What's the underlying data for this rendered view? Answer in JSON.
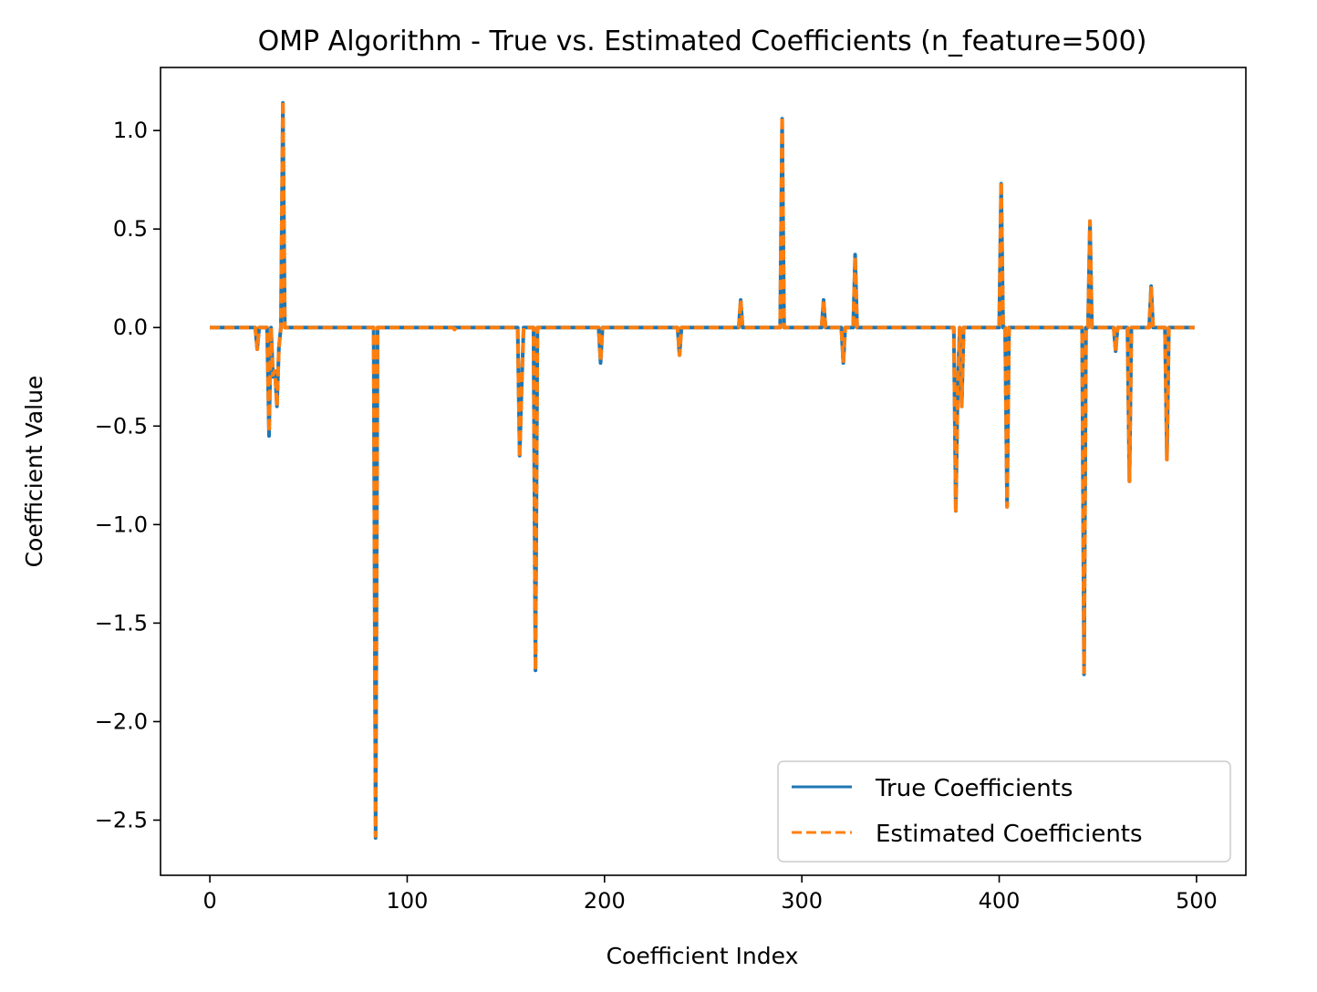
{
  "chart_data": {
    "type": "line",
    "title": "OMP Algorithm - True vs. Estimated Coefficients (n_feature=500)",
    "xlabel": "Coefficient Index",
    "ylabel": "Coefficient Value",
    "xlim": [
      -25,
      525
    ],
    "ylim": [
      -2.78,
      1.32
    ],
    "xticks": [
      0,
      100,
      200,
      300,
      400,
      500
    ],
    "xtick_labels": [
      "0",
      "100",
      "200",
      "300",
      "400",
      "500"
    ],
    "yticks": [
      1.0,
      0.5,
      0.0,
      -0.5,
      -1.0,
      -1.5,
      -2.0,
      -2.5
    ],
    "ytick_labels": [
      "1.0",
      "0.5",
      "0.0",
      "−0.5",
      "−1.0",
      "−1.5",
      "−2.0",
      "−2.5"
    ],
    "grid": false,
    "legend_position": "bottom-right",
    "n_points": 500,
    "series": [
      {
        "name": "True Coefficients",
        "style": "solid",
        "color": "#1f77b4",
        "nonzero": [
          [
            24,
            -0.11
          ],
          [
            30,
            -0.55
          ],
          [
            32,
            -0.25
          ],
          [
            33,
            -0.22
          ],
          [
            34,
            -0.4
          ],
          [
            35,
            -0.1
          ],
          [
            37,
            1.14
          ],
          [
            84,
            -2.59
          ],
          [
            157,
            -0.65
          ],
          [
            158,
            -0.3
          ],
          [
            165,
            -1.74
          ],
          [
            198,
            -0.18
          ],
          [
            238,
            -0.14
          ],
          [
            269,
            0.14
          ],
          [
            290,
            1.06
          ],
          [
            311,
            0.14
          ],
          [
            321,
            -0.18
          ],
          [
            327,
            0.37
          ],
          [
            378,
            -0.93
          ],
          [
            379,
            -0.3
          ],
          [
            381,
            -0.4
          ],
          [
            401,
            0.73
          ],
          [
            404,
            -0.91
          ],
          [
            443,
            -1.76
          ],
          [
            446,
            0.54
          ],
          [
            459,
            -0.12
          ],
          [
            466,
            -0.78
          ],
          [
            477,
            0.21
          ],
          [
            485,
            -0.67
          ]
        ]
      },
      {
        "name": "Estimated Coefficients",
        "style": "dashed",
        "color": "#ff7f0e",
        "nonzero": [
          [
            24,
            -0.11
          ],
          [
            30,
            -0.53
          ],
          [
            32,
            -0.24
          ],
          [
            33,
            -0.22
          ],
          [
            34,
            -0.4
          ],
          [
            35,
            -0.1
          ],
          [
            37,
            1.15
          ],
          [
            84,
            -2.58
          ],
          [
            124,
            -0.01
          ],
          [
            157,
            -0.66
          ],
          [
            158,
            -0.3
          ],
          [
            165,
            -1.74
          ],
          [
            198,
            -0.17
          ],
          [
            238,
            -0.14
          ],
          [
            269,
            0.14
          ],
          [
            290,
            1.07
          ],
          [
            311,
            0.14
          ],
          [
            321,
            -0.17
          ],
          [
            327,
            0.36
          ],
          [
            378,
            -0.94
          ],
          [
            379,
            -0.3
          ],
          [
            381,
            -0.4
          ],
          [
            401,
            0.74
          ],
          [
            404,
            -0.91
          ],
          [
            443,
            -1.75
          ],
          [
            446,
            0.54
          ],
          [
            459,
            -0.12
          ],
          [
            466,
            -0.78
          ],
          [
            477,
            0.2
          ],
          [
            485,
            -0.67
          ]
        ]
      }
    ]
  }
}
